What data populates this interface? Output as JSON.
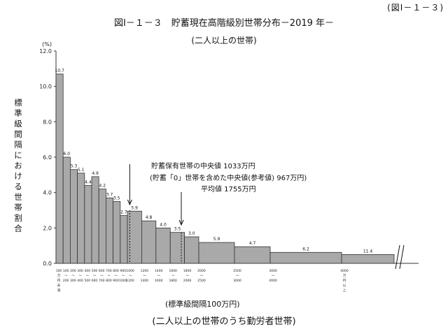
{
  "header": {
    "figure_ref": "(図Ⅰ－１－３)",
    "title": "図Ⅰ－１－３　貯蓄現在高階級別世帯分布－2019 年－",
    "subtitle": "(二人以上の世帯)",
    "bottom_caption": "(二人以上の世帯のうち勤労者世帯)"
  },
  "chart_data": {
    "type": "bar",
    "unit_label": "(%)",
    "ylabel": "標準級間隔における世帯割合",
    "xlabel": "(標準級間隔100万円)",
    "ylim": [
      0,
      12
    ],
    "yticks": [
      "0.0",
      "2.0",
      "4.0",
      "6.0",
      "8.0",
      "10.0",
      "12.0"
    ],
    "bins": [
      {
        "from": 0,
        "to": 100,
        "value": 10.7,
        "label": "10.7"
      },
      {
        "from": 100,
        "to": 200,
        "value": 6.0,
        "label": "6.0"
      },
      {
        "from": 200,
        "to": 300,
        "value": 5.3,
        "label": "5.3"
      },
      {
        "from": 300,
        "to": 400,
        "value": 5.1,
        "label": "5.1"
      },
      {
        "from": 400,
        "to": 500,
        "value": 4.4,
        "label": "4.4"
      },
      {
        "from": 500,
        "to": 600,
        "value": 4.9,
        "label": "4.9"
      },
      {
        "from": 600,
        "to": 700,
        "value": 4.2,
        "label": "4.2"
      },
      {
        "from": 700,
        "to": 800,
        "value": 3.7,
        "label": "3.7"
      },
      {
        "from": 800,
        "to": 900,
        "value": 3.5,
        "label": "3.5"
      },
      {
        "from": 900,
        "to": 1000,
        "value": 2.7,
        "label": "2.7"
      },
      {
        "from": 1000,
        "to": 1200,
        "value": 2.95,
        "label": "5.9"
      },
      {
        "from": 1200,
        "to": 1400,
        "value": 2.4,
        "label": "4.8"
      },
      {
        "from": 1400,
        "to": 1600,
        "value": 2.0,
        "label": "4.0"
      },
      {
        "from": 1600,
        "to": 1800,
        "value": 1.75,
        "label": "3.5"
      },
      {
        "from": 1800,
        "to": 2000,
        "value": 1.5,
        "label": "3.0"
      },
      {
        "from": 2000,
        "to": 2500,
        "value": 1.18,
        "label": "5.9"
      },
      {
        "from": 2500,
        "to": 3000,
        "value": 0.94,
        "label": "4.7"
      },
      {
        "from": 3000,
        "to": 4000,
        "value": 0.62,
        "label": "6.2"
      },
      {
        "from": 4000,
        "to": 5000,
        "value": 0.5,
        "label": "11.4"
      }
    ],
    "x_tick_labels": [
      {
        "pos": 0,
        "lines": [
          "100",
          "万",
          "円",
          "未",
          "満"
        ]
      },
      {
        "pos": 100,
        "lines": [
          "100",
          "～",
          "200"
        ]
      },
      {
        "pos": 200,
        "lines": [
          "200",
          "～",
          "300"
        ]
      },
      {
        "pos": 300,
        "lines": [
          "300",
          "～",
          "400"
        ]
      },
      {
        "pos": 400,
        "lines": [
          "400",
          "～",
          "500"
        ]
      },
      {
        "pos": 500,
        "lines": [
          "500",
          "～",
          "600"
        ]
      },
      {
        "pos": 600,
        "lines": [
          "600",
          "～",
          "700"
        ]
      },
      {
        "pos": 700,
        "lines": [
          "700",
          "～",
          "800"
        ]
      },
      {
        "pos": 800,
        "lines": [
          "800",
          "～",
          "900"
        ]
      },
      {
        "pos": 900,
        "lines": [
          "900",
          "～",
          "1000"
        ]
      },
      {
        "pos": 1000,
        "lines": [
          "1000",
          "～",
          "1200"
        ]
      },
      {
        "pos": 1200,
        "lines": [
          "1200",
          "～",
          "1400"
        ]
      },
      {
        "pos": 1400,
        "lines": [
          "1400",
          "～",
          "1600"
        ]
      },
      {
        "pos": 1600,
        "lines": [
          "1600",
          "～",
          "1800"
        ]
      },
      {
        "pos": 1800,
        "lines": [
          "1800",
          "～",
          "2000"
        ]
      },
      {
        "pos": 2000,
        "lines": [
          "2000",
          "～",
          "2500"
        ]
      },
      {
        "pos": 2500,
        "lines": [
          "2500",
          "～",
          "3000"
        ]
      },
      {
        "pos": 3000,
        "lines": [
          "3000",
          "～",
          "4000"
        ]
      },
      {
        "pos": 4000,
        "lines": [
          "4000",
          "万",
          "円",
          "以",
          "上"
        ]
      }
    ],
    "annotations": {
      "median_held": {
        "text": "貯蓄保有世帯の中央値 1033万円",
        "x": 1033
      },
      "median_incl_zero": {
        "text": "(貯蓄「0」世帯を含めた中央値(参考値) 967万円)",
        "x": 967
      },
      "mean": {
        "text": "平均値 1755万円",
        "x": 1755
      }
    }
  }
}
